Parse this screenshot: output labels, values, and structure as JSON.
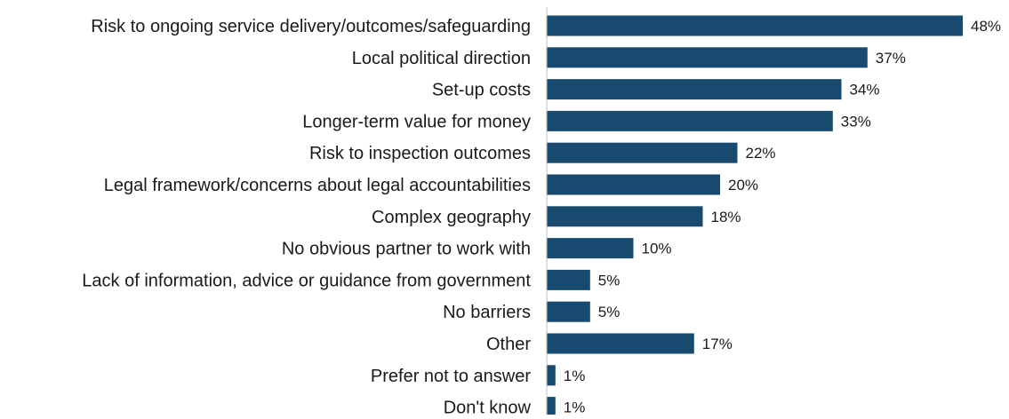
{
  "chart_data": {
    "type": "bar",
    "orientation": "horizontal",
    "categories": [
      "Risk to ongoing service delivery/outcomes/safeguarding",
      "Local political direction",
      "Set-up costs",
      "Longer-term value for money",
      "Risk to inspection outcomes",
      "Legal framework/concerns about legal accountabilities",
      "Complex geography",
      "No obvious partner to work with",
      "Lack of information, advice or guidance from government",
      "No barriers",
      "Other",
      "Prefer not to answer",
      "Don't know"
    ],
    "values": [
      48,
      37,
      34,
      33,
      22,
      20,
      18,
      10,
      5,
      5,
      17,
      1,
      1
    ],
    "value_labels": [
      "48%",
      "37%",
      "34%",
      "33%",
      "22%",
      "20%",
      "18%",
      "10%",
      "5%",
      "5%",
      "17%",
      "1%",
      "1%"
    ],
    "unit": "%",
    "xlim": [
      0,
      50
    ],
    "grid": false,
    "legend": "none",
    "bar_color": "#174a6e",
    "axis_color": "#bfbfbf",
    "text_color": "#1a1a1a"
  }
}
